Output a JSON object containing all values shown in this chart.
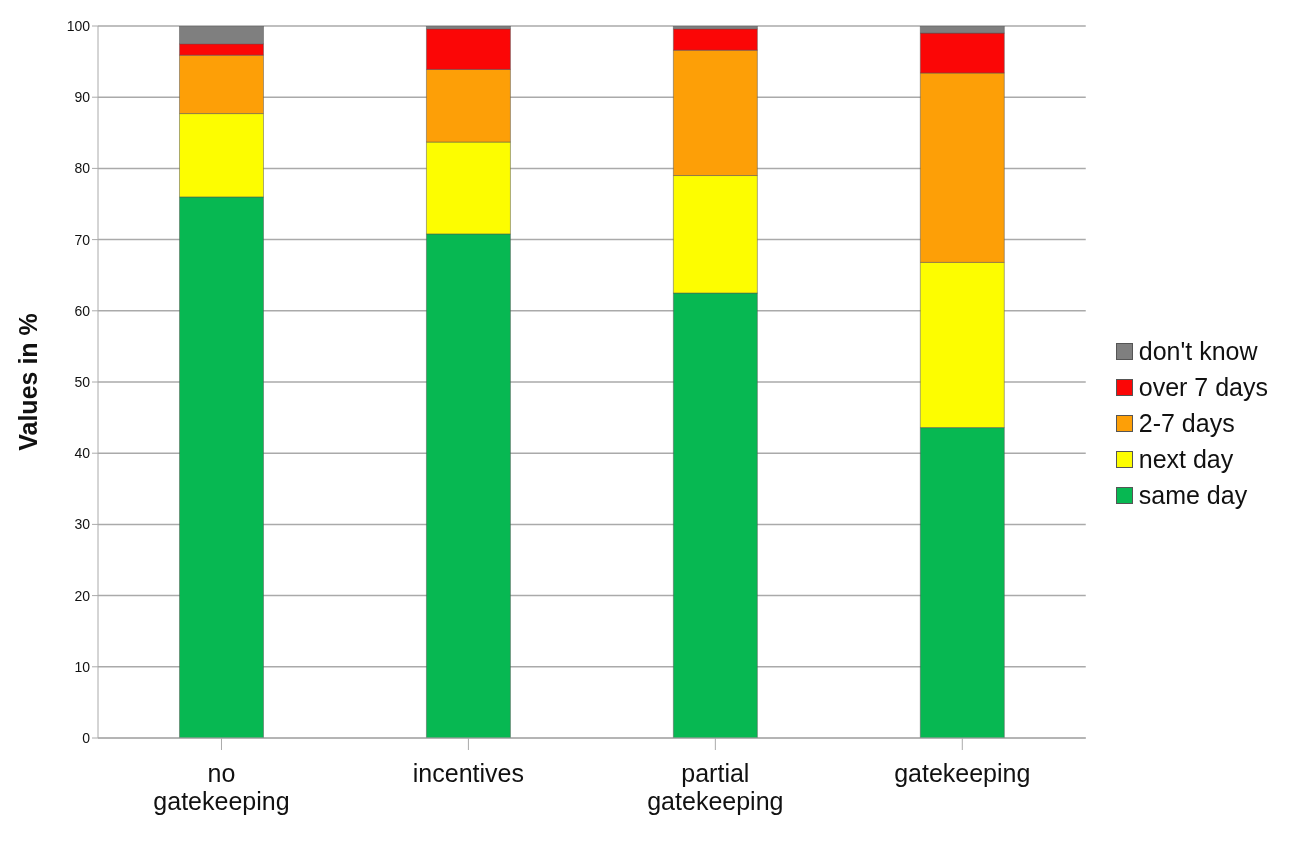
{
  "chart_data": {
    "type": "bar",
    "stacked": true,
    "ylabel": "Values  in %",
    "categories": [
      "no gatekeeping",
      "incentives",
      "partial gatekeeping",
      "gatekeeping"
    ],
    "series": [
      {
        "name": "same day",
        "color": "#07b852",
        "values": [
          76,
          70.8,
          62.5,
          43.6
        ]
      },
      {
        "name": "next day",
        "color": "#fdfd00",
        "values": [
          11.7,
          12.9,
          16.5,
          23.2
        ]
      },
      {
        "name": "2-7 days",
        "color": "#fd9f07",
        "values": [
          8.2,
          10.2,
          17.6,
          26.6
        ]
      },
      {
        "name": "over 7 days",
        "color": "#fb0606",
        "values": [
          1.6,
          5.7,
          3,
          5.6
        ]
      },
      {
        "name": "don't know",
        "color": "#7f7f7f",
        "values": [
          2.5,
          0.4,
          0.4,
          1
        ]
      }
    ],
    "ylim": [
      0,
      100
    ],
    "yticks": [
      0,
      10,
      20,
      30,
      40,
      50,
      60,
      70,
      80,
      90,
      100
    ],
    "grid": "y",
    "legend": "right"
  }
}
